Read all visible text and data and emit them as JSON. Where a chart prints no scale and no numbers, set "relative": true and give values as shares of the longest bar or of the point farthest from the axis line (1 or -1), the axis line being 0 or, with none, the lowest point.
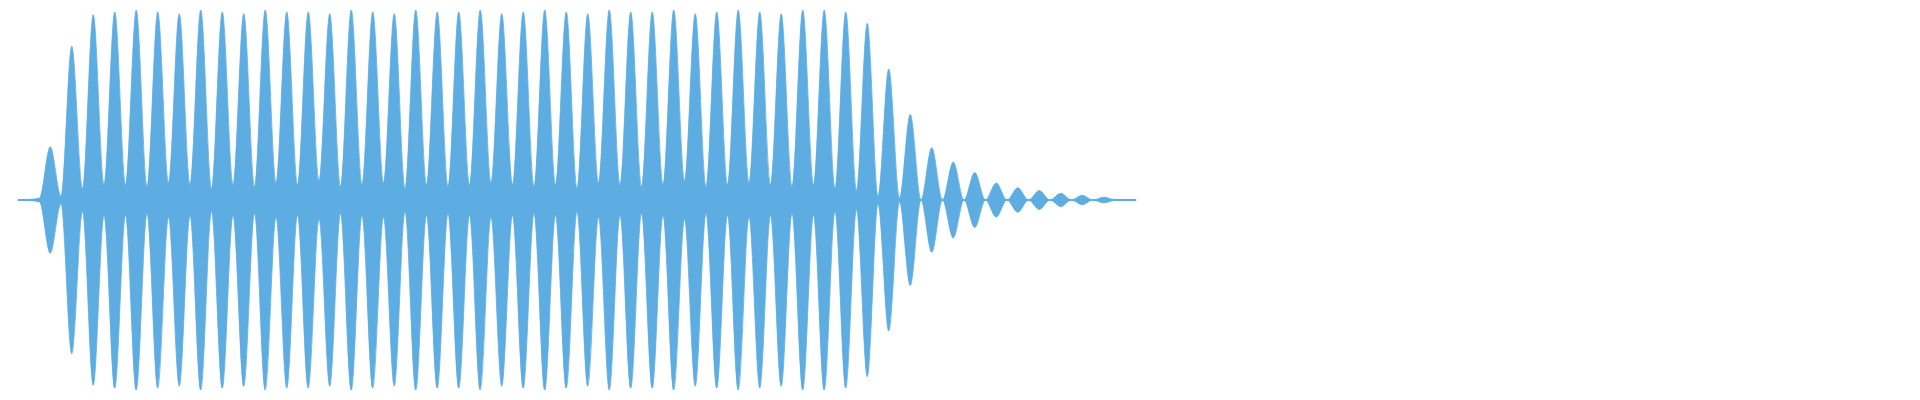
{
  "chart_data": {
    "type": "area",
    "relative": true,
    "categories": [
      null,
      null,
      null,
      null,
      null,
      null,
      null,
      null,
      null,
      null,
      null,
      null,
      null,
      null,
      null,
      null,
      null,
      null,
      null,
      null,
      null,
      null,
      null,
      null,
      null,
      null,
      null,
      null,
      null,
      null,
      null,
      null,
      null,
      null,
      null,
      null,
      null,
      null,
      null,
      null,
      null,
      null,
      null,
      null,
      null,
      null,
      null,
      null,
      null,
      null,
      null,
      null,
      null,
      null,
      null,
      null,
      null,
      null,
      null,
      null,
      null,
      null,
      null,
      null,
      null,
      null,
      null,
      null,
      null,
      null,
      null,
      null,
      null,
      null,
      null,
      null,
      null,
      null,
      null,
      null,
      null,
      null,
      null,
      null,
      null,
      null,
      null,
      null,
      null,
      null,
      null,
      null,
      null,
      null,
      null,
      null,
      null,
      null,
      null,
      null,
      null,
      null,
      null,
      null,
      null
    ],
    "series": [
      {
        "color": "#5dade2",
        "values": [
          0.003,
          0.003,
          0.01,
          0.28,
          0.02,
          0.81,
          0.06,
          0.975,
          0.08,
          0.99,
          0.08,
          1.0,
          0.07,
          0.99,
          0.09,
          0.98,
          0.08,
          1.0,
          0.06,
          0.99,
          0.08,
          0.98,
          0.07,
          1.0,
          0.09,
          0.99,
          0.08,
          0.99,
          0.1,
          0.98,
          0.07,
          1.0,
          0.08,
          0.99,
          0.09,
          0.98,
          0.06,
          1.0,
          0.08,
          0.99,
          0.07,
          0.99,
          0.08,
          1.0,
          0.09,
          0.98,
          0.08,
          0.99,
          0.07,
          1.0,
          0.08,
          0.99,
          0.06,
          0.98,
          0.09,
          1.0,
          0.08,
          0.99,
          0.07,
          0.99,
          0.08,
          1.0,
          0.1,
          0.98,
          0.07,
          0.99,
          0.08,
          1.0,
          0.09,
          0.99,
          0.08,
          0.98,
          0.07,
          1.0,
          0.08,
          1.0,
          0.06,
          0.99,
          0.05,
          0.93,
          0.02,
          0.69,
          0.01,
          0.45,
          0,
          0.275,
          0,
          0.2,
          0,
          0.145,
          0,
          0.09,
          0,
          0.065,
          0,
          0.05,
          0,
          0.035,
          0,
          0.025,
          0,
          0.015,
          0.003,
          0.003,
          0.003
        ]
      },
      {
        "color": "#5dade2",
        "values": [
          -0.003,
          -0.003,
          -0.01,
          -0.28,
          -0.02,
          -0.81,
          -0.06,
          -0.975,
          -0.08,
          -0.99,
          -0.08,
          -1.0,
          -0.07,
          -0.99,
          -0.09,
          -0.98,
          -0.08,
          -1.0,
          -0.06,
          -0.99,
          -0.08,
          -0.98,
          -0.07,
          -1.0,
          -0.09,
          -0.99,
          -0.08,
          -0.99,
          -0.1,
          -0.98,
          -0.07,
          -1.0,
          -0.08,
          -0.99,
          -0.09,
          -0.98,
          -0.06,
          -1.0,
          -0.08,
          -0.99,
          -0.07,
          -0.99,
          -0.08,
          -1.0,
          -0.09,
          -0.98,
          -0.08,
          -0.99,
          -0.07,
          -1.0,
          -0.08,
          -0.99,
          -0.06,
          -0.98,
          -0.09,
          -1.0,
          -0.08,
          -0.99,
          -0.07,
          -0.99,
          -0.08,
          -1.0,
          -0.1,
          -0.98,
          -0.07,
          -0.99,
          -0.08,
          -1.0,
          -0.09,
          -0.99,
          -0.08,
          -0.98,
          -0.07,
          -1.0,
          -0.08,
          -1.0,
          -0.06,
          -0.99,
          -0.05,
          -0.93,
          -0.02,
          -0.69,
          -0.01,
          -0.45,
          0,
          -0.275,
          0,
          -0.2,
          0,
          -0.145,
          0,
          -0.09,
          0,
          -0.065,
          0,
          -0.05,
          0,
          -0.035,
          0,
          -0.025,
          0,
          -0.015,
          -0.003,
          -0.003,
          -0.003
        ]
      }
    ]
  }
}
